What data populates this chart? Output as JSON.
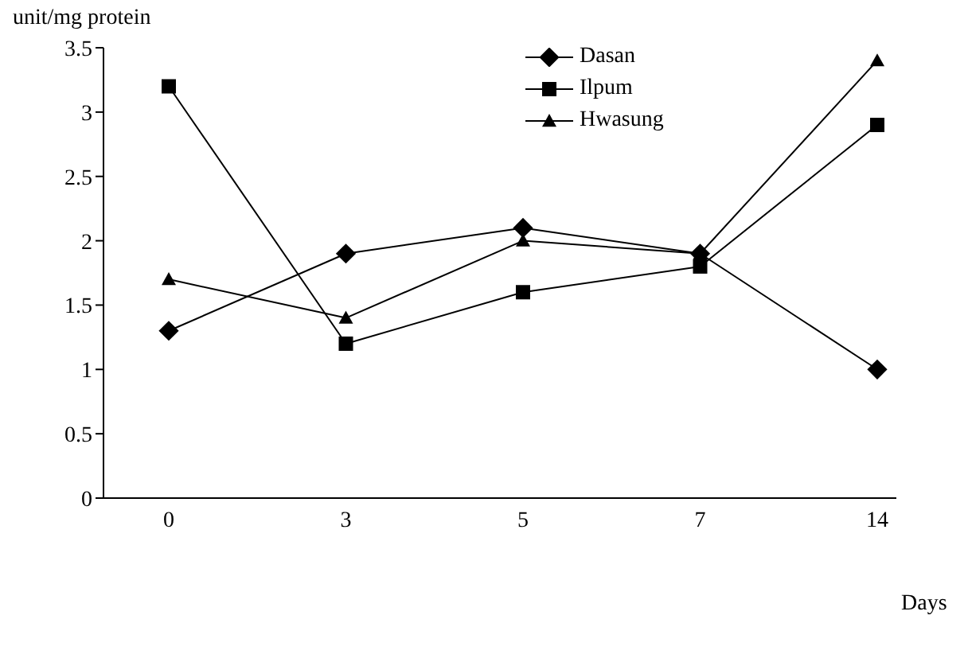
{
  "chart_data": {
    "type": "line",
    "ylabel": "unit/mg protein",
    "xlabel": "Days",
    "categories": [
      "0",
      "3",
      "5",
      "7",
      "14"
    ],
    "series": [
      {
        "name": "Dasan",
        "color": "#000000",
        "marker": "diamond",
        "values": [
          1.3,
          1.9,
          2.1,
          1.9,
          1.0
        ]
      },
      {
        "name": "Ilpum",
        "color": "#000000",
        "marker": "square",
        "values": [
          3.2,
          1.2,
          1.6,
          1.8,
          2.9
        ]
      },
      {
        "name": "Hwasung",
        "color": "#000000",
        "marker": "triangle",
        "values": [
          1.7,
          1.4,
          2.0,
          1.9,
          3.4
        ]
      }
    ],
    "ylim": [
      0,
      3.5
    ],
    "yticks": [
      0,
      0.5,
      1,
      1.5,
      2,
      2.5,
      3,
      3.5
    ],
    "grid": false,
    "legend": "top",
    "line_style": "solid"
  }
}
